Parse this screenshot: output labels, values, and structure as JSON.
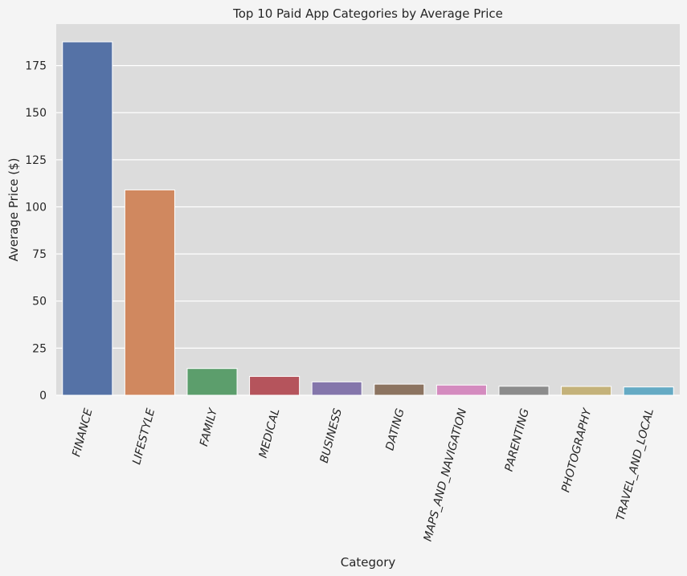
{
  "chart_data": {
    "type": "bar",
    "title": "Top 10 Paid App Categories by Average Price",
    "xlabel": "Category",
    "ylabel": "Average Price ($)",
    "categories": [
      "FINANCE",
      "LIFESTYLE",
      "FAMILY",
      "MEDICAL",
      "BUSINESS",
      "DATING",
      "MAPS_AND_NAVIGATION",
      "PARENTING",
      "PHOTOGRAPHY",
      "TRAVEL_AND_LOCAL"
    ],
    "values": [
      187.6,
      109.0,
      14.2,
      10.0,
      7.1,
      5.9,
      5.4,
      4.8,
      4.7,
      4.4
    ],
    "colors": [
      "#5572a6",
      "#d0885f",
      "#5c9e6c",
      "#b5545c",
      "#8476ab",
      "#8c7461",
      "#d48bbf",
      "#8c8c8c",
      "#c4b27a",
      "#65aac4"
    ],
    "yticks": [
      0,
      25,
      50,
      75,
      100,
      125,
      150,
      175
    ],
    "ylim": [
      0,
      197
    ],
    "grid": true,
    "plot_background": "#dcdcdc",
    "page_background": "#f4f4f4",
    "grid_color": "#ffffff"
  }
}
